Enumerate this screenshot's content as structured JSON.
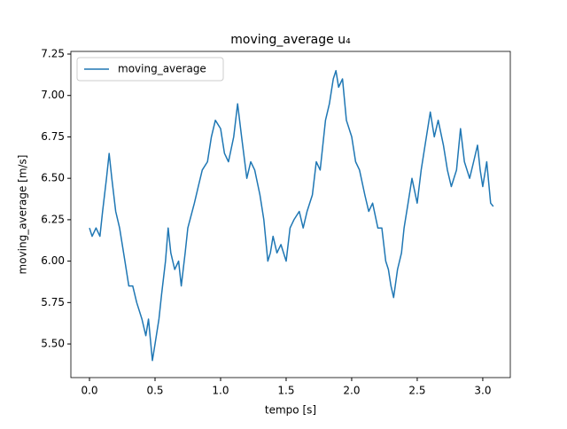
{
  "chart_data": {
    "type": "line",
    "title": "moving_average u₄",
    "xlabel": "tempo [s]",
    "ylabel": "moving_average [m/s]",
    "xlim": [
      -0.142,
      3.21
    ],
    "ylim": [
      5.297,
      7.266
    ],
    "xticks": [
      {
        "value": 0,
        "label": "0.0"
      },
      0.5,
      {
        "value": 1,
        "label": "1.0"
      },
      1.5,
      {
        "value": 2,
        "label": "2.0"
      },
      2.5,
      {
        "value": 3,
        "label": "3.0"
      }
    ],
    "yticks": [
      {
        "value": 5.5,
        "label": "5.50"
      },
      5.75,
      {
        "value": 6,
        "label": "6.00"
      },
      6.25,
      {
        "value": 6.5,
        "label": "6.50"
      },
      6.75,
      {
        "value": 7,
        "label": "7.00"
      },
      7.25
    ],
    "legend": "upper left",
    "series": [
      {
        "name": "moving_average",
        "color": "#1f77b4",
        "x": [
          0.0,
          0.02,
          0.05,
          0.08,
          0.1,
          0.13,
          0.15,
          0.17,
          0.2,
          0.23,
          0.25,
          0.27,
          0.3,
          0.33,
          0.36,
          0.4,
          0.43,
          0.45,
          0.48,
          0.5,
          0.53,
          0.55,
          0.58,
          0.6,
          0.62,
          0.65,
          0.68,
          0.7,
          0.73,
          0.75,
          0.8,
          0.83,
          0.86,
          0.9,
          0.93,
          0.96,
          1.0,
          1.03,
          1.06,
          1.1,
          1.13,
          1.16,
          1.2,
          1.23,
          1.26,
          1.3,
          1.33,
          1.36,
          1.38,
          1.4,
          1.43,
          1.46,
          1.5,
          1.53,
          1.56,
          1.6,
          1.63,
          1.66,
          1.7,
          1.73,
          1.76,
          1.8,
          1.83,
          1.86,
          1.88,
          1.9,
          1.93,
          1.96,
          2.0,
          2.03,
          2.06,
          2.1,
          2.13,
          2.16,
          2.2,
          2.23,
          2.26,
          2.28,
          2.3,
          2.32,
          2.35,
          2.38,
          2.4,
          2.43,
          2.46,
          2.5,
          2.53,
          2.56,
          2.6,
          2.63,
          2.66,
          2.7,
          2.73,
          2.76,
          2.8,
          2.83,
          2.86,
          2.9,
          2.93,
          2.96,
          2.98,
          3.0,
          3.03,
          3.06,
          3.08
        ],
        "values": [
          6.2,
          6.15,
          6.2,
          6.15,
          6.3,
          6.5,
          6.65,
          6.5,
          6.3,
          6.2,
          6.1,
          6.0,
          5.85,
          5.85,
          5.75,
          5.65,
          5.55,
          5.65,
          5.4,
          5.5,
          5.65,
          5.8,
          6.0,
          6.2,
          6.05,
          5.95,
          6.0,
          5.85,
          6.05,
          6.2,
          6.35,
          6.45,
          6.55,
          6.6,
          6.75,
          6.85,
          6.8,
          6.65,
          6.6,
          6.75,
          6.95,
          6.75,
          6.5,
          6.6,
          6.55,
          6.4,
          6.25,
          6.0,
          6.05,
          6.15,
          6.05,
          6.1,
          6.0,
          6.2,
          6.25,
          6.3,
          6.2,
          6.3,
          6.4,
          6.6,
          6.55,
          6.85,
          6.95,
          7.1,
          7.15,
          7.05,
          7.1,
          6.85,
          6.75,
          6.6,
          6.55,
          6.4,
          6.3,
          6.35,
          6.2,
          6.2,
          6.0,
          5.95,
          5.85,
          5.78,
          5.95,
          6.05,
          6.2,
          6.35,
          6.5,
          6.35,
          6.55,
          6.7,
          6.9,
          6.75,
          6.85,
          6.7,
          6.55,
          6.45,
          6.55,
          6.8,
          6.6,
          6.5,
          6.6,
          6.7,
          6.55,
          6.45,
          6.6,
          6.35,
          6.33
        ]
      }
    ]
  }
}
